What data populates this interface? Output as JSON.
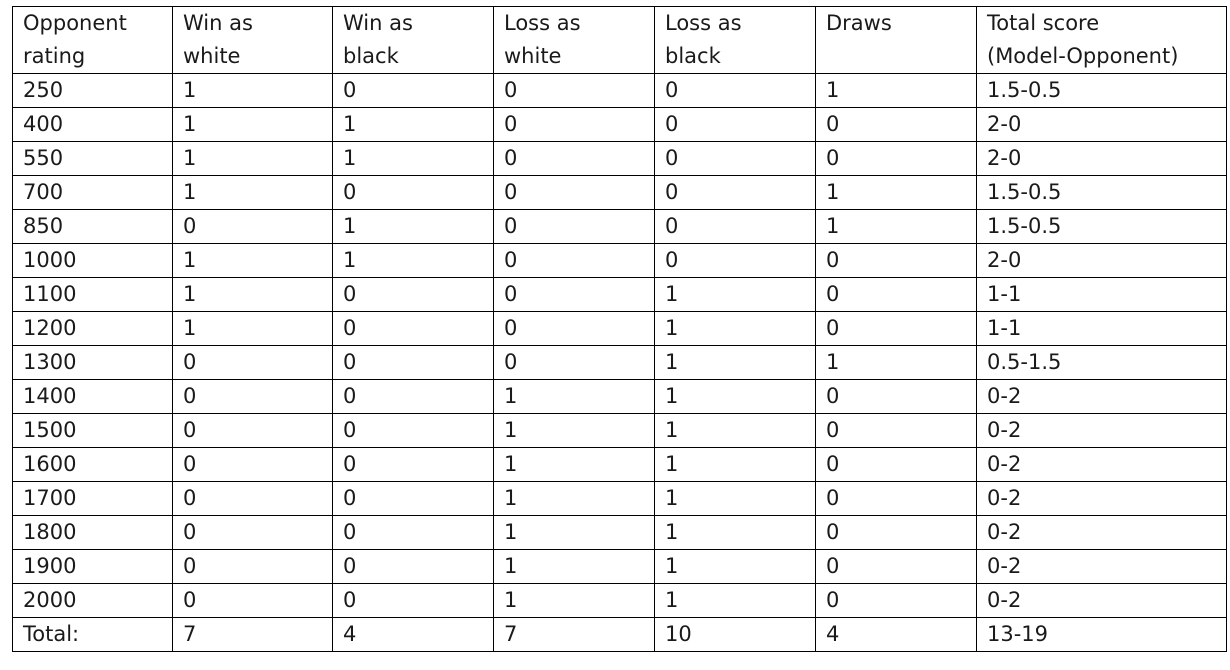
{
  "table": {
    "headers": [
      {
        "line1": "Opponent",
        "line2": "rating"
      },
      {
        "line1": "Win as",
        "line2": "white"
      },
      {
        "line1": "Win as",
        "line2": "black"
      },
      {
        "line1": "Loss as",
        "line2": "white"
      },
      {
        "line1": "Loss as",
        "line2": "black"
      },
      {
        "line1": "Draws",
        "line2": ""
      },
      {
        "line1": "Total score",
        "line2": "(Model-Opponent)"
      }
    ],
    "rows": [
      [
        "250",
        "1",
        "0",
        "0",
        "0",
        "1",
        "1.5-0.5"
      ],
      [
        "400",
        "1",
        "1",
        "0",
        "0",
        "0",
        "2-0"
      ],
      [
        "550",
        "1",
        "1",
        "0",
        "0",
        "0",
        "2-0"
      ],
      [
        "700",
        "1",
        "0",
        "0",
        "0",
        "1",
        "1.5-0.5"
      ],
      [
        "850",
        "0",
        "1",
        "0",
        "0",
        "1",
        "1.5-0.5"
      ],
      [
        "1000",
        "1",
        "1",
        "0",
        "0",
        "0",
        "2-0"
      ],
      [
        "1100",
        "1",
        "0",
        "0",
        "1",
        "0",
        "1-1"
      ],
      [
        "1200",
        "1",
        "0",
        "0",
        "1",
        "0",
        "1-1"
      ],
      [
        "1300",
        "0",
        "0",
        "0",
        "1",
        "1",
        "0.5-1.5"
      ],
      [
        "1400",
        "0",
        "0",
        "1",
        "1",
        "0",
        "0-2"
      ],
      [
        "1500",
        "0",
        "0",
        "1",
        "1",
        "0",
        "0-2"
      ],
      [
        "1600",
        "0",
        "0",
        "1",
        "1",
        "0",
        "0-2"
      ],
      [
        "1700",
        "0",
        "0",
        "1",
        "1",
        "0",
        "0-2"
      ],
      [
        "1800",
        "0",
        "0",
        "1",
        "1",
        "0",
        "0-2"
      ],
      [
        "1900",
        "0",
        "0",
        "1",
        "1",
        "0",
        "0-2"
      ],
      [
        "2000",
        "0",
        "0",
        "1",
        "1",
        "0",
        "0-2"
      ]
    ],
    "totals": [
      "Total:",
      "7",
      "4",
      "7",
      "10",
      "4",
      "13-19"
    ]
  }
}
